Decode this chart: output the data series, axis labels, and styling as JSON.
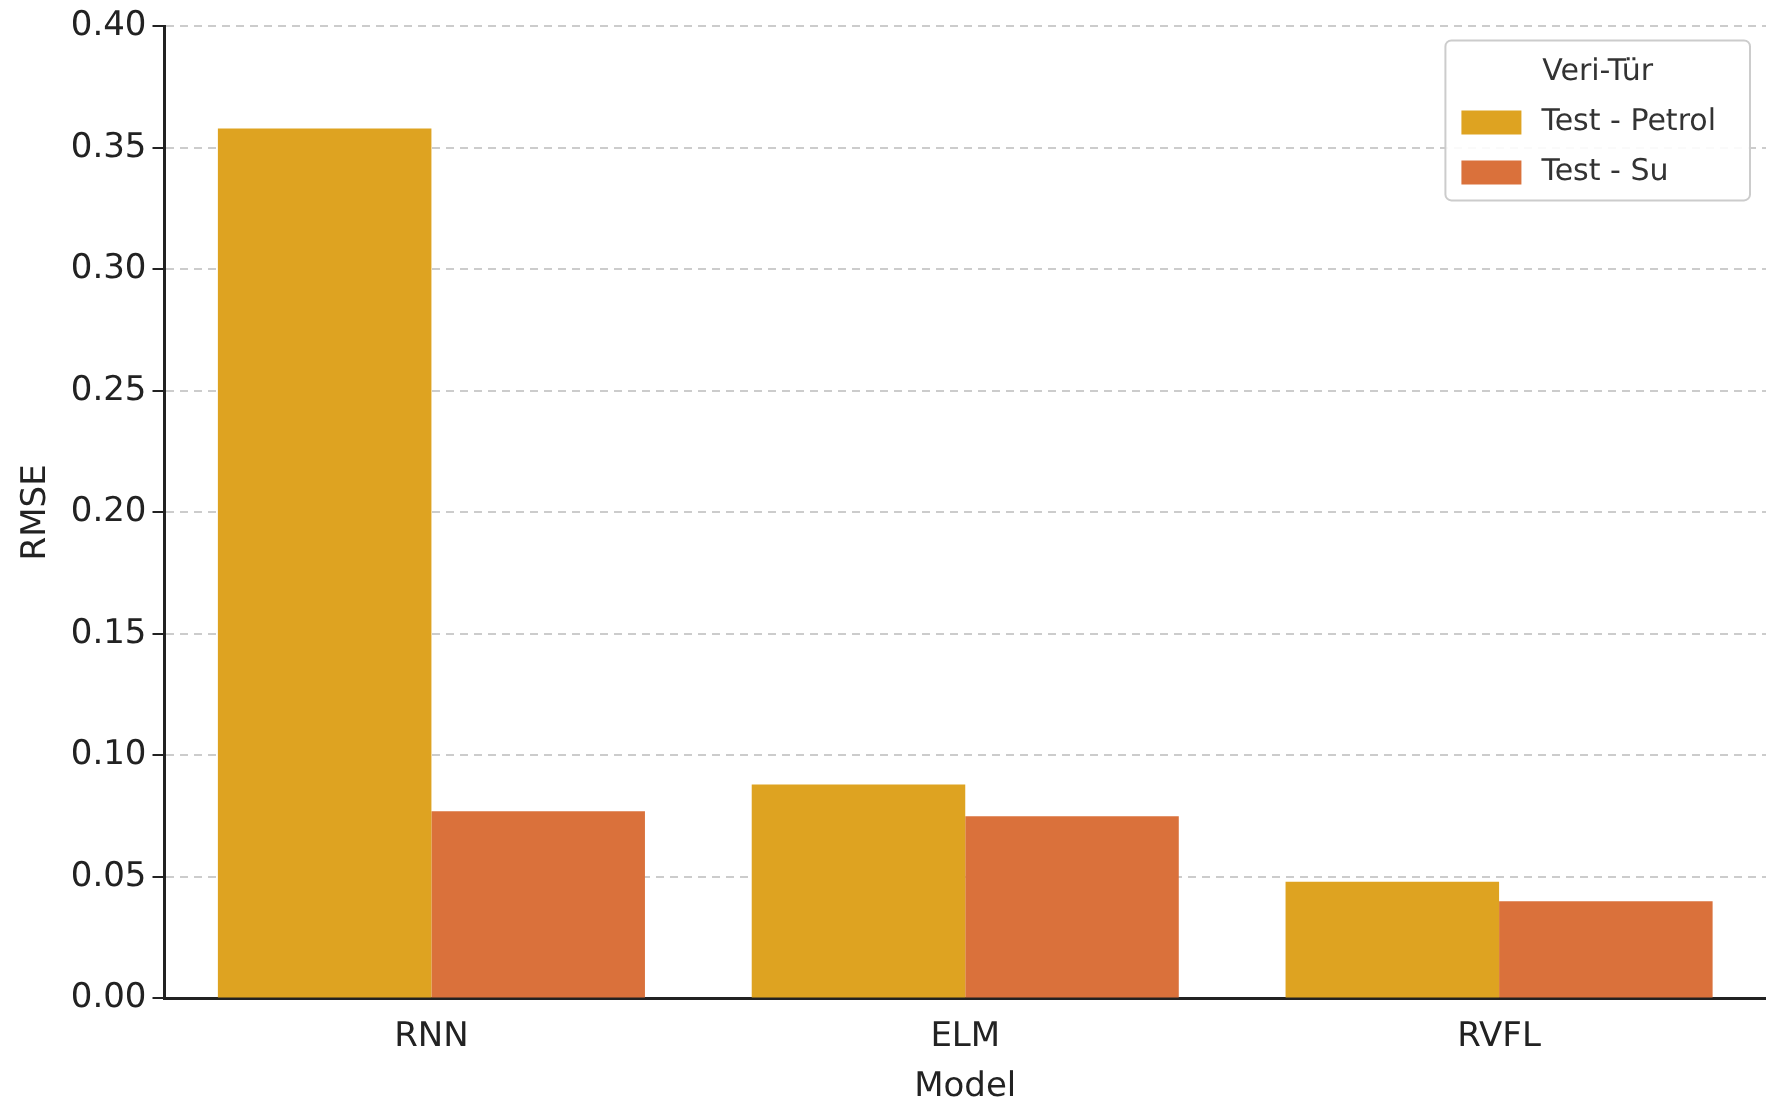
{
  "chart_data": {
    "type": "bar",
    "xlabel": "Model",
    "ylabel": "RMSE",
    "legend_title": "Veri-Tür",
    "categories": [
      "RNN",
      "ELM",
      "RVFL"
    ],
    "series": [
      {
        "name": "Test - Petrol",
        "color": "#dea321",
        "values": [
          0.358,
          0.088,
          0.048
        ]
      },
      {
        "name": "Test - Su",
        "color": "#da713b",
        "values": [
          0.077,
          0.075,
          0.04
        ]
      }
    ],
    "ylim": [
      0,
      0.4
    ],
    "yticks": [
      {
        "value": 0,
        "label": "0.00"
      },
      {
        "value": 0.05,
        "label": "0.05"
      },
      {
        "value": 0.1,
        "label": "0.10"
      },
      {
        "value": 0.15,
        "label": "0.15"
      },
      {
        "value": 0.2,
        "label": "0.20"
      },
      {
        "value": 0.25,
        "label": "0.25"
      },
      {
        "value": 0.3,
        "label": "0.30"
      },
      {
        "value": 0.35,
        "label": "0.35"
      },
      {
        "value": 0.4,
        "label": "0.40"
      }
    ],
    "grid": "y",
    "legend": "top right"
  }
}
